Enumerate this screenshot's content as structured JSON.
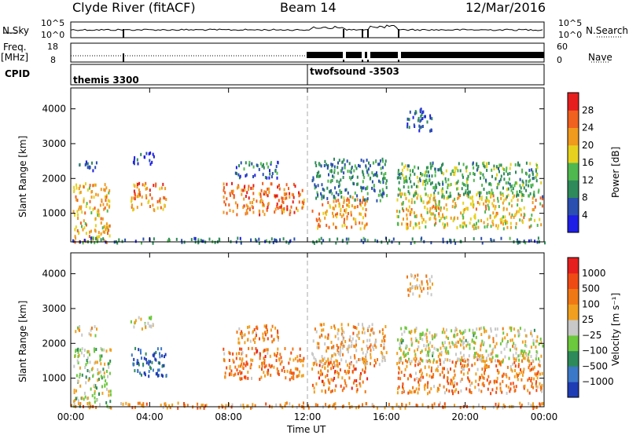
{
  "header": {
    "station": "Clyde River (fitACF)",
    "beam": "Beam 14",
    "date": "12/Mar/2016"
  },
  "aux_panels": {
    "nsky_label": "N.Sky",
    "nsky_ticks": [
      "10^5",
      "10^0"
    ],
    "nsearch_label": "N.Search",
    "nsearch_ticks": [
      "10^5",
      "10^0"
    ],
    "freq_label": "Freq.",
    "freq_unit": "[MHz]",
    "freq_ticks": [
      "18",
      "8"
    ],
    "nave_label": "Nave",
    "nave_ticks": [
      "60",
      "0"
    ],
    "cpid_label": "CPID",
    "cpid_entries": [
      "themis 3300",
      "twofsound -3503"
    ]
  },
  "colors": {
    "power": [
      "#1e1ee6",
      "#2a4fb0",
      "#2e8a5a",
      "#4fb84f",
      "#e6d21e",
      "#f09a1e",
      "#f0601e",
      "#e61e1e"
    ],
    "velocity": [
      "#1e3cb4",
      "#3c78c8",
      "#2e8a5a",
      "#6cc83c",
      "#c8c8c8",
      "#f0a01e",
      "#f07814",
      "#f04a14",
      "#e61e1e"
    ],
    "axis": "#000000"
  },
  "chart_data": [
    {
      "type": "heatmap",
      "title": "",
      "xlabel": "Time UT",
      "ylabel": "Slant Range [km]",
      "x_ticks": [
        "00:00",
        "04:00",
        "08:00",
        "12:00",
        "16:00",
        "20:00",
        "00:00"
      ],
      "xlim": [
        0,
        24
      ],
      "y_ticks": [
        1000,
        2000,
        3000,
        4000
      ],
      "ylim": [
        180,
        4600
      ],
      "colorbar": {
        "title": "Power [dB]",
        "ticks": [
          4,
          8,
          12,
          16,
          20,
          24,
          28
        ],
        "range": [
          0,
          32
        ]
      },
      "scatter_regions": [
        {
          "t0": 0.1,
          "t1": 2.0,
          "r0": 200,
          "r1": 1900,
          "level": 0.65
        },
        {
          "t0": 0.2,
          "t1": 1.3,
          "r0": 2250,
          "r1": 2550,
          "level": 0.15
        },
        {
          "t0": 3.0,
          "t1": 4.9,
          "r0": 1100,
          "r1": 1900,
          "level": 0.75
        },
        {
          "t0": 3.0,
          "t1": 4.2,
          "r0": 2450,
          "r1": 2800,
          "level": 0.1
        },
        {
          "t0": 7.7,
          "t1": 11.8,
          "r0": 1000,
          "r1": 1900,
          "level": 0.78
        },
        {
          "t0": 8.3,
          "t1": 10.5,
          "r0": 2050,
          "r1": 2550,
          "level": 0.25
        },
        {
          "t0": 12.2,
          "t1": 15.0,
          "r0": 600,
          "r1": 1500,
          "level": 0.7
        },
        {
          "t0": 12.2,
          "t1": 16.0,
          "r0": 1400,
          "r1": 2600,
          "level": 0.3
        },
        {
          "t0": 16.5,
          "t1": 23.9,
          "r0": 600,
          "r1": 1600,
          "level": 0.6
        },
        {
          "t0": 16.5,
          "t1": 23.9,
          "r0": 1500,
          "r1": 2500,
          "level": 0.4
        },
        {
          "t0": 17.0,
          "t1": 18.3,
          "r0": 3400,
          "r1": 4050,
          "level": 0.2
        },
        {
          "t0": 0.0,
          "t1": 24.0,
          "r0": 180,
          "r1": 330,
          "level": 0.25
        }
      ]
    },
    {
      "type": "heatmap",
      "title": "",
      "xlabel": "Time UT",
      "ylabel": "Slant Range [km]",
      "x_ticks": [
        "00:00",
        "04:00",
        "08:00",
        "12:00",
        "16:00",
        "20:00",
        "00:00"
      ],
      "xlim": [
        0,
        24
      ],
      "y_ticks": [
        1000,
        2000,
        3000,
        4000
      ],
      "ylim": [
        180,
        4600
      ],
      "colorbar": {
        "title": "Velocity [m s⁻¹]",
        "ticks": [
          1000,
          500,
          100,
          25,
          -25,
          -100,
          -500,
          -1000
        ],
        "range": [
          -1000,
          1000
        ]
      },
      "scatter_regions": [
        {
          "t0": 0.1,
          "t1": 2.0,
          "r0": 200,
          "r1": 1900,
          "level": 0.45
        },
        {
          "t0": 0.2,
          "t1": 1.3,
          "r0": 2250,
          "r1": 2550,
          "level": 0.55
        },
        {
          "t0": 3.0,
          "t1": 4.9,
          "r0": 1100,
          "r1": 1900,
          "level": 0.12
        },
        {
          "t0": 3.0,
          "t1": 4.2,
          "r0": 2450,
          "r1": 2800,
          "level": 0.5
        },
        {
          "t0": 7.7,
          "t1": 11.8,
          "r0": 1000,
          "r1": 1900,
          "level": 0.72
        },
        {
          "t0": 8.3,
          "t1": 10.5,
          "r0": 2050,
          "r1": 2550,
          "level": 0.7
        },
        {
          "t0": 12.2,
          "t1": 15.0,
          "r0": 600,
          "r1": 1500,
          "level": 0.75
        },
        {
          "t0": 12.2,
          "t1": 16.0,
          "r0": 1400,
          "r1": 2600,
          "level": 0.62
        },
        {
          "t0": 16.5,
          "t1": 23.9,
          "r0": 600,
          "r1": 1600,
          "level": 0.7
        },
        {
          "t0": 16.5,
          "t1": 23.9,
          "r0": 1500,
          "r1": 2500,
          "level": 0.5
        },
        {
          "t0": 17.0,
          "t1": 18.3,
          "r0": 3400,
          "r1": 4050,
          "level": 0.6
        },
        {
          "t0": 0.0,
          "t1": 24.0,
          "r0": 180,
          "r1": 330,
          "level": 0.68
        }
      ]
    }
  ]
}
